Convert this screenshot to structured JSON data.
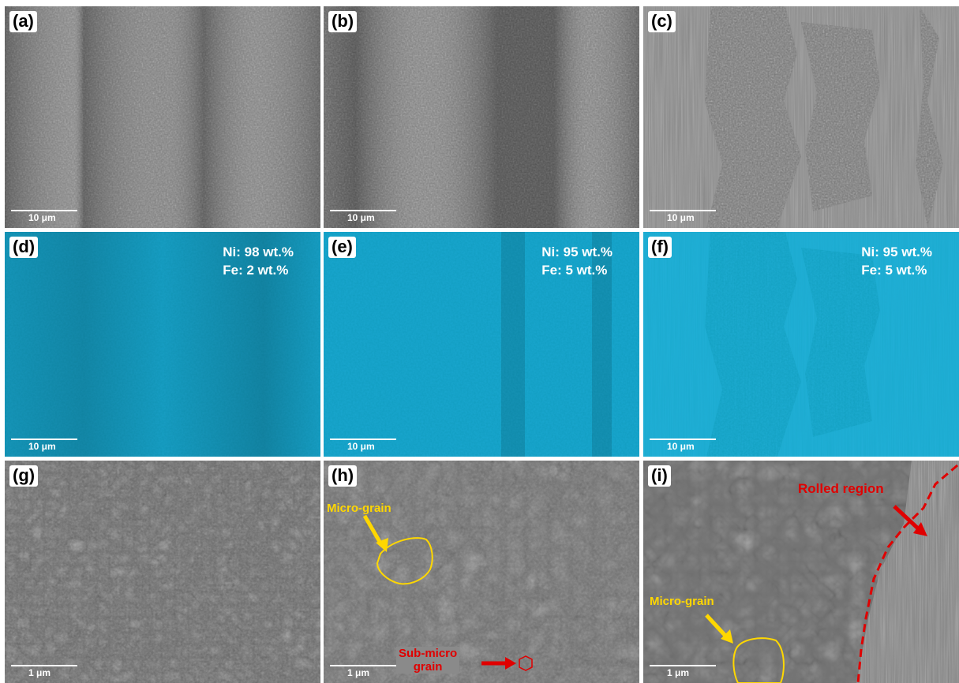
{
  "panels": {
    "a": {
      "label": "(a)",
      "scale": "10 μm"
    },
    "b": {
      "label": "(b)",
      "scale": "10 μm"
    },
    "c": {
      "label": "(c)",
      "scale": "10 μm"
    },
    "d": {
      "label": "(d)",
      "scale": "10 μm",
      "ni": "Ni: 98 wt.%",
      "fe": "Fe: 2 wt.%"
    },
    "e": {
      "label": "(e)",
      "scale": "10 μm",
      "ni": "Ni: 95 wt.%",
      "fe": "Fe: 5 wt.%"
    },
    "f": {
      "label": "(f)",
      "scale": "10 μm",
      "ni": "Ni: 95 wt.%",
      "fe": "Fe: 5 wt.%"
    },
    "g": {
      "label": "(g)",
      "scale": "1 μm"
    },
    "h": {
      "label": "(h)",
      "scale": "1 μm",
      "micro_grain": "Micro-grain",
      "sub_micro_1": "Sub-micro",
      "sub_micro_2": "grain"
    },
    "i": {
      "label": "(i)",
      "scale": "1 μm",
      "micro_grain": "Micro-grain",
      "rolled": "Rolled region"
    }
  },
  "colors": {
    "sem_gray": "#6b6b6b",
    "eds_cyan": "#1aa7d0",
    "annotation_yellow": "#ffd700",
    "annotation_red": "#e00000"
  }
}
